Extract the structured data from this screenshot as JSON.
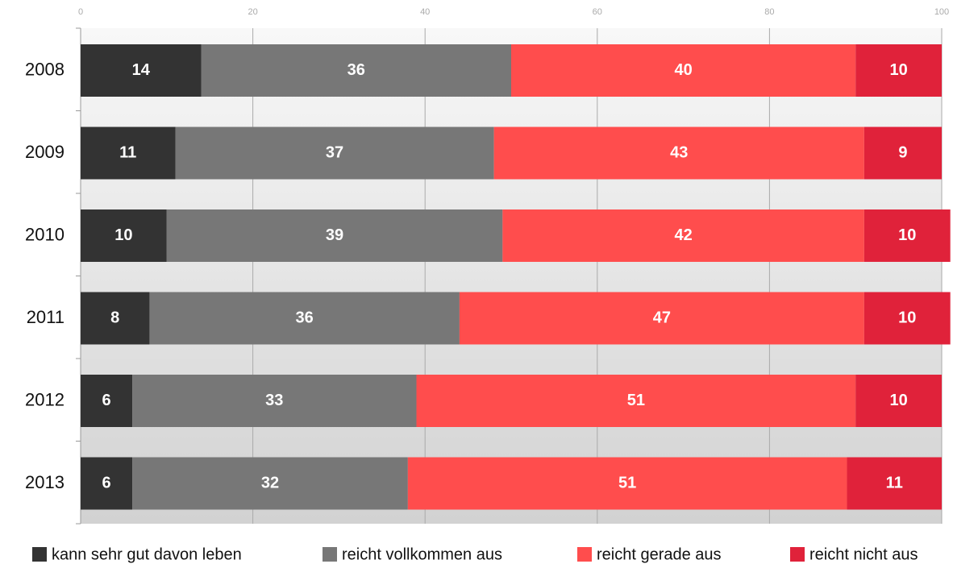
{
  "chart_data": {
    "type": "stacked-barh",
    "categories": [
      "2008",
      "2009",
      "2010",
      "2011",
      "2012",
      "2013"
    ],
    "series": [
      {
        "name": "kann sehr gut davon leben",
        "color": "#333333",
        "values": [
          14,
          11,
          10,
          8,
          6,
          6
        ]
      },
      {
        "name": "reicht vollkommen aus",
        "color": "#777777",
        "values": [
          36,
          37,
          39,
          36,
          33,
          32
        ]
      },
      {
        "name": "reicht gerade aus",
        "color": "#ff4d4d",
        "values": [
          40,
          43,
          42,
          47,
          51,
          51
        ]
      },
      {
        "name": "reicht nicht aus",
        "color": "#e0223a",
        "values": [
          10,
          9,
          10,
          10,
          10,
          11
        ]
      }
    ],
    "xlim": [
      0,
      100
    ],
    "xticks": [
      0,
      20,
      40,
      60,
      80,
      100
    ],
    "grid": true,
    "legend": "bottom"
  }
}
